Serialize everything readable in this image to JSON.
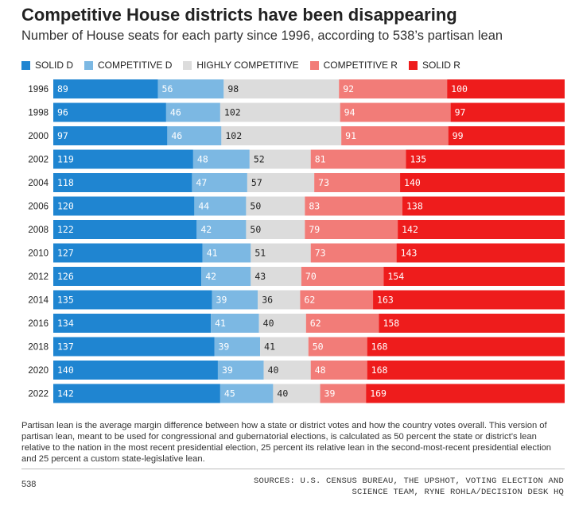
{
  "header": {
    "title": "Competitive House districts have been disappearing",
    "subtitle": "Number of House seats for each party since 1996, according to 538’s partisan lean"
  },
  "colors": {
    "solid_d": "#1f85d1",
    "competitive_d": "#7cb8e3",
    "highly_competitive": "#dcdcdc",
    "competitive_r": "#f27c78",
    "solid_r": "#ee1c1c"
  },
  "legend": {
    "items": [
      {
        "label": "SOLID D",
        "color": "#1f85d1"
      },
      {
        "label": "COMPETITIVE D",
        "color": "#7cb8e3"
      },
      {
        "label": "HIGHLY COMPETITIVE",
        "color": "#dcdcdc"
      },
      {
        "label": "COMPETITIVE R",
        "color": "#f27c78"
      },
      {
        "label": "SOLID R",
        "color": "#ee1c1c"
      }
    ]
  },
  "chart_data": {
    "type": "bar",
    "orientation": "horizontal",
    "stacked": true,
    "categories": [
      "1996",
      "1998",
      "2000",
      "2002",
      "2004",
      "2006",
      "2008",
      "2010",
      "2012",
      "2014",
      "2016",
      "2018",
      "2020",
      "2022"
    ],
    "series": [
      {
        "name": "SOLID D",
        "color": "#1f85d1",
        "values": [
          89,
          96,
          97,
          119,
          118,
          120,
          122,
          127,
          126,
          135,
          134,
          137,
          140,
          142
        ]
      },
      {
        "name": "COMPETITIVE D",
        "color": "#7cb8e3",
        "values": [
          56,
          46,
          46,
          48,
          47,
          44,
          42,
          41,
          42,
          39,
          41,
          39,
          39,
          45
        ]
      },
      {
        "name": "HIGHLY COMPETITIVE",
        "color": "#dcdcdc",
        "values": [
          98,
          102,
          102,
          52,
          57,
          50,
          50,
          51,
          43,
          36,
          40,
          41,
          40,
          40
        ]
      },
      {
        "name": "COMPETITIVE R",
        "color": "#f27c78",
        "values": [
          92,
          94,
          91,
          81,
          73,
          83,
          79,
          73,
          70,
          62,
          62,
          50,
          48,
          39
        ]
      },
      {
        "name": "SOLID R",
        "color": "#ee1c1c",
        "values": [
          100,
          97,
          99,
          135,
          140,
          138,
          142,
          143,
          154,
          163,
          158,
          168,
          168,
          169
        ]
      }
    ],
    "total": 435,
    "legend_position": "top",
    "grid": false
  },
  "footnote": "Partisan lean is the average margin difference between how a state or district votes and how the country votes overall. This version of partisan lean, meant to be used for congressional and gubernatorial elections, is calculated as 50 percent the state or district’s lean relative to the nation in the most recent presidential election, 25 percent its relative lean in the second-most-recent presidential election and 25 percent a custom state-legislative lean.",
  "footer": {
    "brand": "538",
    "sources": "SOURCES: U.S. CENSUS BUREAU, THE UPSHOT, VOTING ELECTION AND SCIENCE TEAM, RYNE ROHLA/DECISION DESK HQ"
  }
}
